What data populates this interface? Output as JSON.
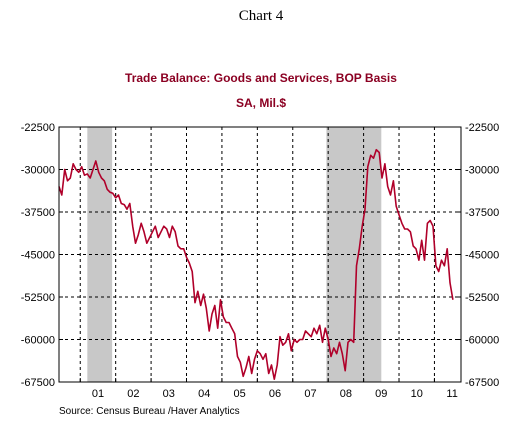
{
  "page_label": "Chart 4",
  "chart_data": {
    "type": "line",
    "title": "Trade Balance:  Goods and Services, BOP Basis",
    "subtitle": "SA, Mil.$",
    "source": "Source:  Census Bureau /Haver Analytics",
    "ylim": [
      -67500,
      -22500
    ],
    "y_ticks": [
      -22500,
      -30000,
      -37500,
      -45000,
      -52500,
      -60000,
      -67500
    ],
    "x_range": [
      2000.4,
      2011.75
    ],
    "x_ticks": [
      {
        "label": "01",
        "value": 2001.5
      },
      {
        "label": "02",
        "value": 2002.5
      },
      {
        "label": "03",
        "value": 2003.5
      },
      {
        "label": "04",
        "value": 2004.5
      },
      {
        "label": "05",
        "value": 2005.5
      },
      {
        "label": "06",
        "value": 2006.5
      },
      {
        "label": "07",
        "value": 2007.5
      },
      {
        "label": "08",
        "value": 2008.5
      },
      {
        "label": "09",
        "value": 2009.5
      },
      {
        "label": "10",
        "value": 2010.5
      },
      {
        "label": "11",
        "value": 2011.5
      }
    ],
    "year_gridlines": [
      2001,
      2002,
      2003,
      2004,
      2005,
      2006,
      2007,
      2008,
      2009,
      2010,
      2011
    ],
    "recessions": [
      [
        2001.2,
        2001.9
      ],
      [
        2007.95,
        2009.5
      ]
    ],
    "grid": true,
    "colors": {
      "line": "#b0002a",
      "title": "#8b0022",
      "recession": "#c8c8c8"
    },
    "series": [
      {
        "values": [
          [
            2000.4,
            -33000
          ],
          [
            2000.48,
            -34500
          ],
          [
            2000.56,
            -30000
          ],
          [
            2000.64,
            -32000
          ],
          [
            2000.72,
            -31500
          ],
          [
            2000.8,
            -29000
          ],
          [
            2000.88,
            -30000
          ],
          [
            2000.96,
            -30500
          ],
          [
            2001.04,
            -29500
          ],
          [
            2001.12,
            -31000
          ],
          [
            2001.2,
            -30800
          ],
          [
            2001.28,
            -31500
          ],
          [
            2001.36,
            -30000
          ],
          [
            2001.44,
            -28500
          ],
          [
            2001.52,
            -30500
          ],
          [
            2001.6,
            -31500
          ],
          [
            2001.68,
            -32000
          ],
          [
            2001.76,
            -33500
          ],
          [
            2001.84,
            -34000
          ],
          [
            2001.92,
            -34200
          ],
          [
            2002.0,
            -35000
          ],
          [
            2002.08,
            -34500
          ],
          [
            2002.16,
            -36000
          ],
          [
            2002.24,
            -36200
          ],
          [
            2002.32,
            -37000
          ],
          [
            2002.4,
            -36000
          ],
          [
            2002.48,
            -40000
          ],
          [
            2002.56,
            -43000
          ],
          [
            2002.64,
            -41500
          ],
          [
            2002.72,
            -39500
          ],
          [
            2002.8,
            -41000
          ],
          [
            2002.88,
            -43000
          ],
          [
            2002.96,
            -42000
          ],
          [
            2003.04,
            -41000
          ],
          [
            2003.12,
            -40000
          ],
          [
            2003.2,
            -42000
          ],
          [
            2003.28,
            -41000
          ],
          [
            2003.36,
            -40000
          ],
          [
            2003.44,
            -40500
          ],
          [
            2003.52,
            -42000
          ],
          [
            2003.6,
            -40000
          ],
          [
            2003.68,
            -41000
          ],
          [
            2003.76,
            -43500
          ],
          [
            2003.84,
            -44000
          ],
          [
            2003.92,
            -44000
          ],
          [
            2004.0,
            -45500
          ],
          [
            2004.08,
            -46500
          ],
          [
            2004.16,
            -48000
          ],
          [
            2004.24,
            -53500
          ],
          [
            2004.32,
            -51500
          ],
          [
            2004.4,
            -54000
          ],
          [
            2004.48,
            -52000
          ],
          [
            2004.56,
            -54500
          ],
          [
            2004.64,
            -58500
          ],
          [
            2004.72,
            -55500
          ],
          [
            2004.8,
            -54000
          ],
          [
            2004.88,
            -58000
          ],
          [
            2004.96,
            -53000
          ],
          [
            2005.04,
            -56000
          ],
          [
            2005.12,
            -57000
          ],
          [
            2005.2,
            -57000
          ],
          [
            2005.28,
            -58000
          ],
          [
            2005.36,
            -59000
          ],
          [
            2005.44,
            -63000
          ],
          [
            2005.52,
            -64000
          ],
          [
            2005.6,
            -66500
          ],
          [
            2005.68,
            -65000
          ],
          [
            2005.76,
            -63000
          ],
          [
            2005.84,
            -66000
          ],
          [
            2005.92,
            -63500
          ],
          [
            2006.0,
            -62000
          ],
          [
            2006.08,
            -62500
          ],
          [
            2006.16,
            -63500
          ],
          [
            2006.24,
            -62500
          ],
          [
            2006.32,
            -66000
          ],
          [
            2006.4,
            -64500
          ],
          [
            2006.48,
            -67000
          ],
          [
            2006.56,
            -64500
          ],
          [
            2006.64,
            -59500
          ],
          [
            2006.72,
            -61000
          ],
          [
            2006.8,
            -60500
          ],
          [
            2006.88,
            -59000
          ],
          [
            2006.96,
            -62000
          ],
          [
            2007.04,
            -60000
          ],
          [
            2007.12,
            -60500
          ],
          [
            2007.2,
            -60000
          ],
          [
            2007.28,
            -60000
          ],
          [
            2007.36,
            -58500
          ],
          [
            2007.44,
            -59000
          ],
          [
            2007.52,
            -59500
          ],
          [
            2007.6,
            -58000
          ],
          [
            2007.68,
            -59000
          ],
          [
            2007.76,
            -57500
          ],
          [
            2007.84,
            -60500
          ],
          [
            2007.92,
            -58000
          ],
          [
            2008.0,
            -60000
          ],
          [
            2008.08,
            -63000
          ],
          [
            2008.16,
            -61500
          ],
          [
            2008.24,
            -62500
          ],
          [
            2008.32,
            -60500
          ],
          [
            2008.4,
            -62500
          ],
          [
            2008.48,
            -65500
          ],
          [
            2008.56,
            -60500
          ],
          [
            2008.64,
            -60000
          ],
          [
            2008.72,
            -60500
          ],
          [
            2008.8,
            -47000
          ],
          [
            2008.88,
            -44000
          ],
          [
            2008.96,
            -40000
          ],
          [
            2009.04,
            -37000
          ],
          [
            2009.12,
            -29500
          ],
          [
            2009.2,
            -27500
          ],
          [
            2009.28,
            -28000
          ],
          [
            2009.36,
            -26500
          ],
          [
            2009.44,
            -27000
          ],
          [
            2009.52,
            -31500
          ],
          [
            2009.6,
            -29000
          ],
          [
            2009.68,
            -33000
          ],
          [
            2009.76,
            -34500
          ],
          [
            2009.84,
            -32000
          ],
          [
            2009.92,
            -36500
          ],
          [
            2010.0,
            -38000
          ],
          [
            2010.08,
            -39500
          ],
          [
            2010.16,
            -40500
          ],
          [
            2010.24,
            -40500
          ],
          [
            2010.32,
            -41000
          ],
          [
            2010.4,
            -43500
          ],
          [
            2010.48,
            -44000
          ],
          [
            2010.56,
            -46000
          ],
          [
            2010.64,
            -42500
          ],
          [
            2010.72,
            -46000
          ],
          [
            2010.8,
            -39500
          ],
          [
            2010.88,
            -39000
          ],
          [
            2010.96,
            -40000
          ],
          [
            2011.04,
            -47000
          ],
          [
            2011.12,
            -48000
          ],
          [
            2011.2,
            -46000
          ],
          [
            2011.28,
            -47000
          ],
          [
            2011.36,
            -44000
          ],
          [
            2011.44,
            -50000
          ],
          [
            2011.52,
            -53000
          ]
        ]
      }
    ]
  }
}
